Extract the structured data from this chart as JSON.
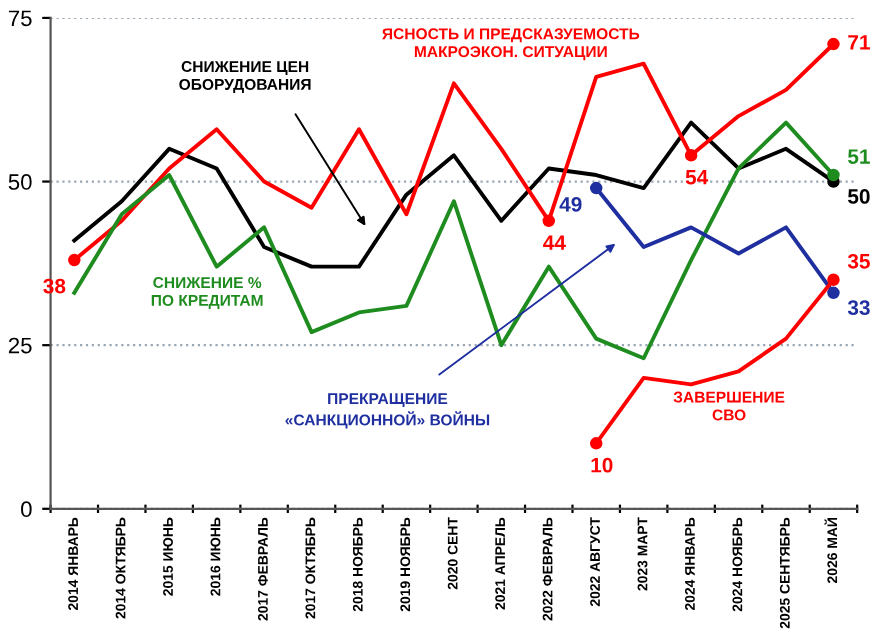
{
  "chart_data": {
    "type": "line",
    "categories": [
      "2014 ЯНВАРЬ",
      "2014 ОКТЯБРЬ",
      "2015 ИЮНЬ",
      "2016 ИЮНЬ",
      "2017 ФЕВРАЛЬ",
      "2017 ОКТЯБРЬ",
      "2018 НОЯБРЬ",
      "2019 НОЯБРЬ",
      "2020 СЕНТ",
      "2021 АПРЕЛЬ",
      "2022 ФЕВРАЛЬ",
      "2022 АВГУСТ",
      "2023 МАРТ",
      "2024 ЯНВАРЬ",
      "2024 НОЯБРЬ",
      "2025 СЕНТЯБРЬ",
      "2026 МАЙ"
    ],
    "series": [
      {
        "name": "СНИЖЕНИЕ ЦЕН ОБОРУДОВАНИЯ",
        "color": "#000000",
        "values": [
          41,
          47,
          55,
          52,
          40,
          37,
          37,
          48,
          54,
          44,
          52,
          51,
          49,
          59,
          52,
          55,
          50
        ],
        "value_labels": [
          null,
          null,
          null,
          null,
          null,
          null,
          null,
          null,
          null,
          null,
          null,
          null,
          null,
          null,
          null,
          null,
          "50"
        ]
      },
      {
        "name": "ЯСНОСТЬ И ПРЕДСКАЗУЕМОСТЬ МАКРОЭКОН. СИТУАЦИИ",
        "color": "#ff0000",
        "values": [
          38,
          44,
          52,
          58,
          50,
          46,
          58,
          45,
          65,
          55,
          44,
          66,
          68,
          54,
          60,
          64,
          71
        ],
        "value_labels": [
          "38",
          null,
          null,
          null,
          null,
          null,
          null,
          null,
          null,
          null,
          "44",
          null,
          null,
          "54",
          null,
          null,
          "71"
        ]
      },
      {
        "name": "СНИЖЕНИЕ % ПО КРЕДИТАМ",
        "color": "#1e8c1e",
        "values": [
          33,
          45,
          51,
          37,
          43,
          27,
          30,
          31,
          47,
          25,
          37,
          26,
          23,
          38,
          52,
          59,
          51
        ],
        "value_labels": [
          null,
          null,
          null,
          null,
          null,
          null,
          null,
          null,
          null,
          null,
          null,
          null,
          null,
          null,
          null,
          null,
          "51"
        ]
      },
      {
        "name": "ПРЕКРАЩЕНИЕ «САНКЦИОННОЙ» ВОЙНЫ",
        "color": "#1f2fa0",
        "values": [
          null,
          null,
          null,
          null,
          null,
          null,
          null,
          null,
          null,
          null,
          null,
          49,
          40,
          43,
          39,
          43,
          33
        ],
        "value_labels": [
          null,
          null,
          null,
          null,
          null,
          null,
          null,
          null,
          null,
          null,
          null,
          "49",
          null,
          null,
          null,
          null,
          "33"
        ]
      },
      {
        "name": "ЗАВЕРШЕНИЕ СВО",
        "color": "#ff0000",
        "values": [
          null,
          null,
          null,
          null,
          null,
          null,
          null,
          null,
          null,
          null,
          null,
          10,
          20,
          19,
          21,
          26,
          35
        ],
        "value_labels": [
          null,
          null,
          null,
          null,
          null,
          null,
          null,
          null,
          null,
          null,
          null,
          "10",
          null,
          null,
          null,
          null,
          "35"
        ]
      }
    ],
    "ylim": [
      0,
      75
    ],
    "yticks": [
      0,
      25,
      50,
      75
    ],
    "grid": "y",
    "marker": "none",
    "line_style": "solid"
  }
}
